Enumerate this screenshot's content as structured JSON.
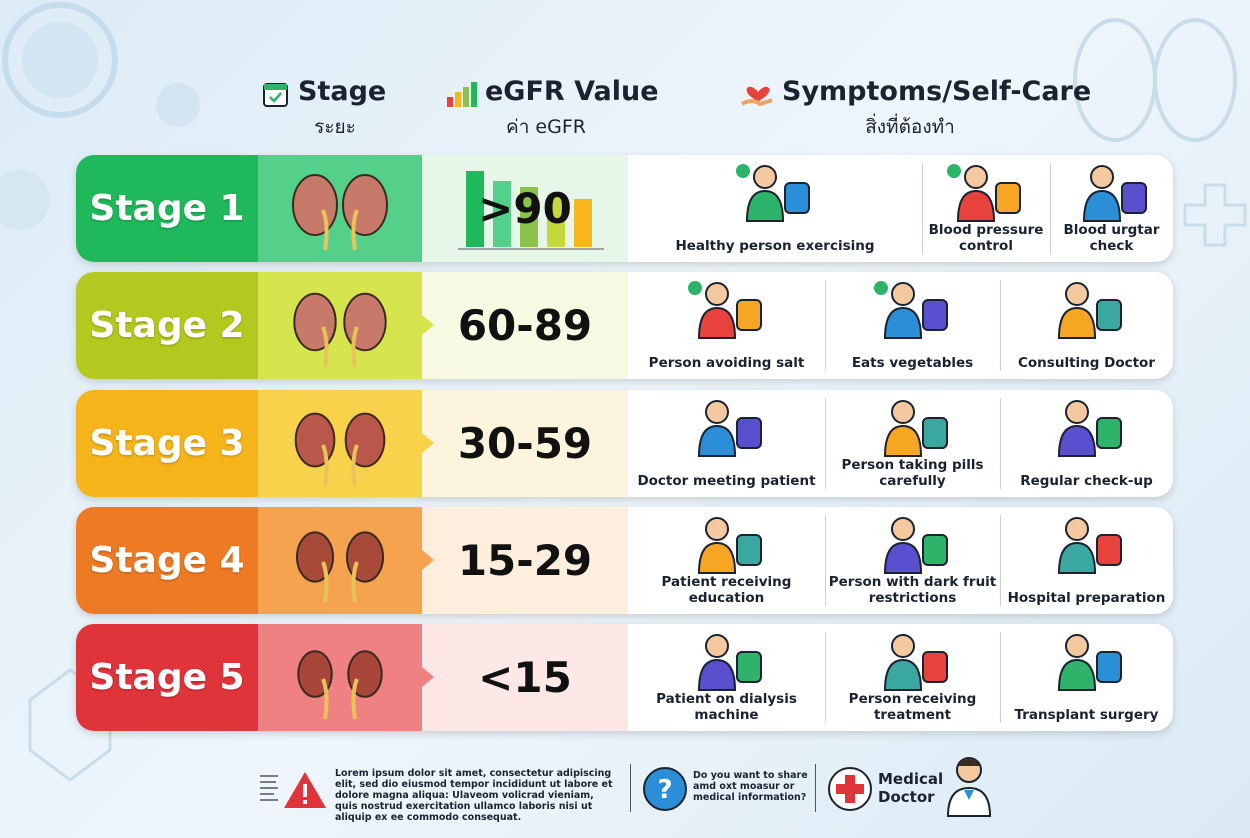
{
  "header": {
    "columns": [
      {
        "title": "Stage",
        "subtitle": "ระยะ"
      },
      {
        "title": "eGFR Value",
        "subtitle": "ค่า eGFR"
      },
      {
        "title": "Symptoms/Self-Care",
        "subtitle": "สิ่งที่ต้องทำ"
      }
    ]
  },
  "rows": [
    {
      "stage": "Stage 1",
      "egfr": ">90",
      "care": [
        "Healthy person exercising",
        "Blood pressure control",
        "Blood urgtar check"
      ]
    },
    {
      "stage": "Stage 2",
      "egfr": "60-89",
      "care": [
        "Person avoiding salt",
        "Eats vegetables",
        "Consulting Doctor"
      ]
    },
    {
      "stage": "Stage 3",
      "egfr": "30-59",
      "care": [
        "Doctor meeting patient",
        "Person taking pills carefully",
        "Regular check-up"
      ]
    },
    {
      "stage": "Stage 4",
      "egfr": "15-29",
      "care": [
        "Patient receiving education",
        "Person with dark fruit restrictions",
        "Hospital preparation"
      ]
    },
    {
      "stage": "Stage 5",
      "egfr": "<15",
      "care": [
        "Patient on dialysis machine",
        "Person receiving treatment",
        "Transplant surgery"
      ]
    }
  ],
  "footer": {
    "disclaimer": "Lorem ipsum dolor sit amet, consectetur adipiscing elit, sed dio eiusmod tempor incididunt ut labore et dolore magna aliqua: Ulaveom volicrad vieniam, quis nostrud exercitation ullamco laboris nisi ut aliquip ex ee commodo consequat.",
    "question": "Do you want to share amd oxt moasur or medical information?",
    "doctor": "Medical Doctor"
  }
}
